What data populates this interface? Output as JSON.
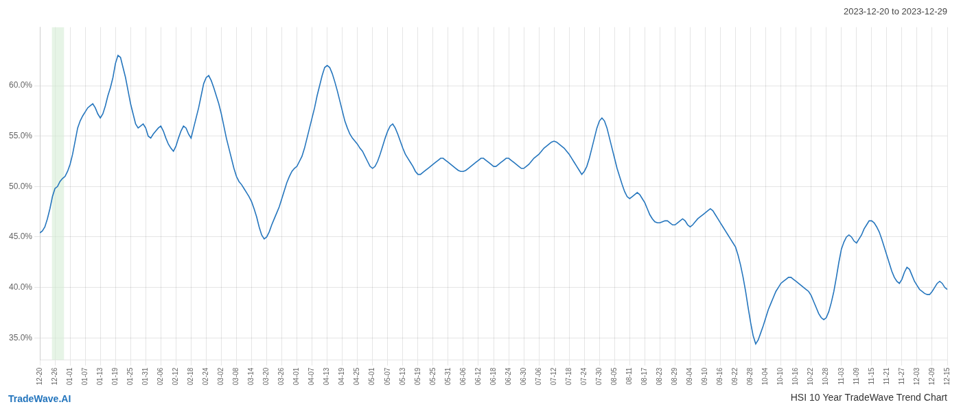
{
  "chart_data": {
    "type": "line",
    "title": "HSI 10 Year TradeWave Trend Chart",
    "subtitle": "2023-12-20 to 2023-12-29",
    "annotations": [
      "TradeWave.AI"
    ],
    "color": "#2475bd",
    "grid": true,
    "ylim": [
      0.328,
      0.658
    ],
    "yticks": [
      {
        "value": 0.35,
        "label": "35.0%"
      },
      {
        "value": 0.4,
        "label": "40.0%"
      },
      {
        "value": 0.45,
        "label": "45.0%"
      },
      {
        "value": 0.5,
        "label": "50.0%"
      },
      {
        "value": 0.55,
        "label": "55.0%"
      },
      {
        "value": 0.6,
        "label": "60.0%"
      }
    ],
    "highlight": {
      "from": 4.8,
      "to": 9.6,
      "color": "#d6edd6"
    },
    "categories": [
      "12-20",
      null,
      null,
      null,
      null,
      null,
      "12-26",
      null,
      null,
      null,
      null,
      null,
      "01-01",
      null,
      null,
      null,
      null,
      null,
      "01-07",
      null,
      null,
      null,
      null,
      null,
      "01-13",
      null,
      null,
      null,
      null,
      null,
      "01-19",
      null,
      null,
      null,
      null,
      null,
      "01-25",
      null,
      null,
      null,
      null,
      null,
      "01-31",
      null,
      null,
      null,
      null,
      null,
      "02-06",
      null,
      null,
      null,
      null,
      null,
      "02-12",
      null,
      null,
      null,
      null,
      null,
      "02-18",
      null,
      null,
      null,
      null,
      null,
      "02-24",
      null,
      null,
      null,
      null,
      null,
      "03-02",
      null,
      null,
      null,
      null,
      null,
      "03-08",
      null,
      null,
      null,
      null,
      null,
      "03-14",
      null,
      null,
      null,
      null,
      null,
      "03-20",
      null,
      null,
      null,
      null,
      null,
      "03-26",
      null,
      null,
      null,
      null,
      null,
      "04-01",
      null,
      null,
      null,
      null,
      null,
      "04-07",
      null,
      null,
      null,
      null,
      null,
      "04-13",
      null,
      null,
      null,
      null,
      null,
      "04-19",
      null,
      null,
      null,
      null,
      null,
      "04-25",
      null,
      null,
      null,
      null,
      null,
      "05-01",
      null,
      null,
      null,
      null,
      null,
      "05-07",
      null,
      null,
      null,
      null,
      null,
      "05-13",
      null,
      null,
      null,
      null,
      null,
      "05-19",
      null,
      null,
      null,
      null,
      null,
      "05-25",
      null,
      null,
      null,
      null,
      null,
      "05-31",
      null,
      null,
      null,
      null,
      null,
      "06-06",
      null,
      null,
      null,
      null,
      null,
      "06-12",
      null,
      null,
      null,
      null,
      null,
      "06-18",
      null,
      null,
      null,
      null,
      null,
      "06-24",
      null,
      null,
      null,
      null,
      null,
      "06-30",
      null,
      null,
      null,
      null,
      null,
      "07-06",
      null,
      null,
      null,
      null,
      null,
      "07-12",
      null,
      null,
      null,
      null,
      null,
      "07-18",
      null,
      null,
      null,
      null,
      null,
      "07-24",
      null,
      null,
      null,
      null,
      null,
      "07-30",
      null,
      null,
      null,
      null,
      null,
      "08-05",
      null,
      null,
      null,
      null,
      null,
      "08-11",
      null,
      null,
      null,
      null,
      null,
      "08-17",
      null,
      null,
      null,
      null,
      null,
      "08-23",
      null,
      null,
      null,
      null,
      null,
      "08-29",
      null,
      null,
      null,
      null,
      null,
      "09-04",
      null,
      null,
      null,
      null,
      null,
      "09-10",
      null,
      null,
      null,
      null,
      null,
      "09-16",
      null,
      null,
      null,
      null,
      null,
      "09-22",
      null,
      null,
      null,
      null,
      null,
      "09-28",
      null,
      null,
      null,
      null,
      null,
      "10-04",
      null,
      null,
      null,
      null,
      null,
      "10-10",
      null,
      null,
      null,
      null,
      null,
      "10-16",
      null,
      null,
      null,
      null,
      null,
      "10-22",
      null,
      null,
      null,
      null,
      null,
      "10-28",
      null,
      null,
      null,
      null,
      null,
      "11-03",
      null,
      null,
      null,
      null,
      null,
      "11-09",
      null,
      null,
      null,
      null,
      null,
      "11-15",
      null,
      null,
      null,
      null,
      null,
      "11-21",
      null,
      null,
      null,
      null,
      null,
      "11-27",
      null,
      null,
      null,
      null,
      null,
      "12-03",
      null,
      null,
      null,
      null,
      null,
      "12-09",
      null,
      null,
      null,
      null,
      null,
      "12-15"
    ],
    "values": [
      0.454,
      0.456,
      0.46,
      0.468,
      0.478,
      0.49,
      0.498,
      0.5,
      0.505,
      0.508,
      0.51,
      0.515,
      0.522,
      0.532,
      0.545,
      0.558,
      0.565,
      0.57,
      0.574,
      0.578,
      0.58,
      0.582,
      0.578,
      0.572,
      0.568,
      0.572,
      0.58,
      0.59,
      0.598,
      0.608,
      0.622,
      0.63,
      0.628,
      0.618,
      0.608,
      0.595,
      0.582,
      0.572,
      0.562,
      0.558,
      0.56,
      0.562,
      0.558,
      0.55,
      0.548,
      0.552,
      0.555,
      0.558,
      0.56,
      0.555,
      0.548,
      0.542,
      0.538,
      0.535,
      0.54,
      0.548,
      0.555,
      0.56,
      0.558,
      0.552,
      0.548,
      0.558,
      0.568,
      0.578,
      0.59,
      0.602,
      0.608,
      0.61,
      0.605,
      0.598,
      0.59,
      0.582,
      0.572,
      0.56,
      0.548,
      0.538,
      0.528,
      0.518,
      0.51,
      0.505,
      0.502,
      0.498,
      0.494,
      0.49,
      0.485,
      0.478,
      0.47,
      0.46,
      0.452,
      0.448,
      0.45,
      0.455,
      0.462,
      0.468,
      0.474,
      0.48,
      0.488,
      0.496,
      0.504,
      0.51,
      0.515,
      0.518,
      0.52,
      0.525,
      0.53,
      0.538,
      0.548,
      0.558,
      0.568,
      0.578,
      0.59,
      0.6,
      0.61,
      0.618,
      0.62,
      0.618,
      0.612,
      0.604,
      0.595,
      0.585,
      0.575,
      0.565,
      0.558,
      0.552,
      0.548,
      0.545,
      0.542,
      0.538,
      0.535,
      0.53,
      0.525,
      0.52,
      0.518,
      0.52,
      0.525,
      0.532,
      0.54,
      0.548,
      0.555,
      0.56,
      0.562,
      0.558,
      0.552,
      0.545,
      0.538,
      0.532,
      0.528,
      0.524,
      0.52,
      0.515,
      0.512,
      0.512,
      0.514,
      0.516,
      0.518,
      0.52,
      0.522,
      0.524,
      0.526,
      0.528,
      0.528,
      0.526,
      0.524,
      0.522,
      0.52,
      0.518,
      0.516,
      0.515,
      0.515,
      0.516,
      0.518,
      0.52,
      0.522,
      0.524,
      0.526,
      0.528,
      0.528,
      0.526,
      0.524,
      0.522,
      0.52,
      0.52,
      0.522,
      0.524,
      0.526,
      0.528,
      0.528,
      0.526,
      0.524,
      0.522,
      0.52,
      0.518,
      0.518,
      0.52,
      0.522,
      0.525,
      0.528,
      0.53,
      0.532,
      0.535,
      0.538,
      0.54,
      0.542,
      0.544,
      0.545,
      0.544,
      0.542,
      0.54,
      0.538,
      0.535,
      0.532,
      0.528,
      0.524,
      0.52,
      0.516,
      0.512,
      0.515,
      0.52,
      0.528,
      0.538,
      0.548,
      0.558,
      0.565,
      0.568,
      0.565,
      0.558,
      0.548,
      0.538,
      0.528,
      0.518,
      0.51,
      0.502,
      0.495,
      0.49,
      0.488,
      0.49,
      0.492,
      0.494,
      0.492,
      0.488,
      0.484,
      0.478,
      0.472,
      0.468,
      0.465,
      0.464,
      0.464,
      0.465,
      0.466,
      0.466,
      0.464,
      0.462,
      0.462,
      0.464,
      0.466,
      0.468,
      0.466,
      0.462,
      0.46,
      0.462,
      0.465,
      0.468,
      0.47,
      0.472,
      0.474,
      0.476,
      0.478,
      0.476,
      0.472,
      0.468,
      0.464,
      0.46,
      0.456,
      0.452,
      0.448,
      0.444,
      0.44,
      0.432,
      0.422,
      0.41,
      0.396,
      0.38,
      0.365,
      0.352,
      0.344,
      0.348,
      0.355,
      0.362,
      0.37,
      0.378,
      0.384,
      0.39,
      0.396,
      0.4,
      0.404,
      0.406,
      0.408,
      0.41,
      0.41,
      0.408,
      0.406,
      0.404,
      0.402,
      0.4,
      0.398,
      0.396,
      0.392,
      0.386,
      0.38,
      0.374,
      0.37,
      0.368,
      0.37,
      0.376,
      0.385,
      0.396,
      0.41,
      0.425,
      0.438,
      0.445,
      0.45,
      0.452,
      0.45,
      0.446,
      0.444,
      0.448,
      0.452,
      0.458,
      0.462,
      0.466,
      0.466,
      0.464,
      0.46,
      0.455,
      0.448,
      0.44,
      0.432,
      0.424,
      0.416,
      0.41,
      0.406,
      0.404,
      0.408,
      0.415,
      0.42,
      0.418,
      0.412,
      0.406,
      0.402,
      0.398,
      0.396,
      0.394,
      0.393,
      0.393,
      0.396,
      0.4,
      0.404,
      0.406,
      0.404,
      0.4,
      0.398
    ]
  }
}
